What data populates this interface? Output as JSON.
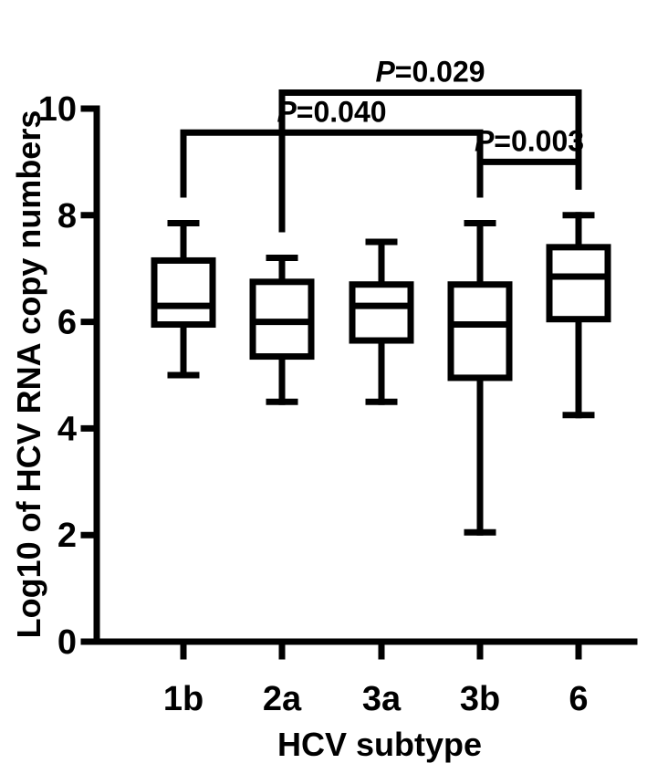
{
  "chart_data": {
    "type": "box",
    "xlabel": "HCV subtype",
    "ylabel": "Log10 of  HCV RNA copy numbers",
    "ylim": [
      0,
      10
    ],
    "yticks": [
      "0",
      "2",
      "4",
      "6",
      "8",
      "10"
    ],
    "categories": [
      "1b",
      "2a",
      "3a",
      "3b",
      "6"
    ],
    "boxes": [
      {
        "category": "1b",
        "min": 5.0,
        "q1": 5.95,
        "median": 6.3,
        "q3": 7.15,
        "max": 7.85
      },
      {
        "category": "2a",
        "min": 4.5,
        "q1": 5.35,
        "median": 6.0,
        "q3": 6.75,
        "max": 7.2
      },
      {
        "category": "3a",
        "min": 4.5,
        "q1": 5.65,
        "median": 6.3,
        "q3": 6.7,
        "max": 7.5
      },
      {
        "category": "3b",
        "min": 2.05,
        "q1": 4.95,
        "median": 5.95,
        "q3": 6.7,
        "max": 7.85
      },
      {
        "category": "6",
        "min": 4.25,
        "q1": 6.05,
        "median": 6.85,
        "q3": 7.4,
        "max": 8.0
      }
    ],
    "significance": [
      {
        "from": "2a",
        "to": "6",
        "p_prefix": "P",
        "p_value": "=0.029",
        "level": 10.3
      },
      {
        "from": "1b",
        "to": "3b",
        "p_prefix": "P",
        "p_value": "=0.040",
        "level": 9.55
      },
      {
        "from": "3b",
        "to": "6",
        "p_prefix": "P",
        "p_value": "=0.003",
        "level": 9.0
      }
    ]
  }
}
